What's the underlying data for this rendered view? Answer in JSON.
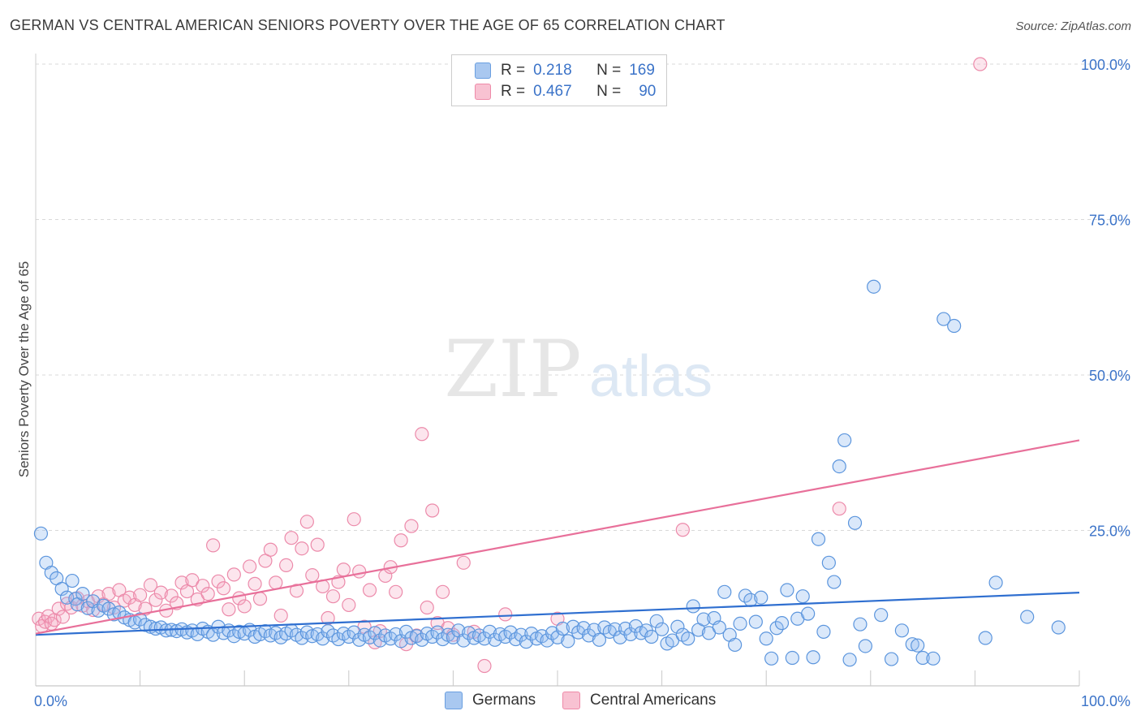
{
  "title": "GERMAN VS CENTRAL AMERICAN SENIORS POVERTY OVER THE AGE OF 65 CORRELATION CHART",
  "source": "Source: ZipAtlas.com",
  "watermark": {
    "zip": "ZIP",
    "atlas": "atlas"
  },
  "legend": {
    "rows": [
      {
        "r_label": "R =",
        "r_value": "0.218",
        "n_label": "N =",
        "n_value": "169",
        "color": "#a9c8f0",
        "border": "#6a9fe0"
      },
      {
        "r_label": "R =",
        "r_value": "0.467",
        "n_label": "N =",
        "n_value": "90",
        "color": "#f8c2d2",
        "border": "#ee8aa8"
      }
    ]
  },
  "bottom_legend": [
    {
      "label": "Germans",
      "color": "#a9c8f0",
      "border": "#6a9fe0"
    },
    {
      "label": "Central Americans",
      "color": "#f8c2d2",
      "border": "#ee8aa8"
    }
  ],
  "colors": {
    "blue_fill": "rgba(150,190,240,0.35)",
    "blue_stroke": "#5b95dd",
    "blue_line": "#2f6fd0",
    "pink_fill": "rgba(245,170,195,0.30)",
    "pink_stroke": "#ec8aaa",
    "pink_line": "#e8709a",
    "tick_text": "#3b73c8",
    "grid": "#d9d9d9"
  },
  "chart_data": {
    "type": "scatter",
    "title": "GERMAN VS CENTRAL AMERICAN SENIORS POVERTY OVER THE AGE OF 65 CORRELATION CHART",
    "xlabel": "",
    "ylabel": "Seniors Poverty Over the Age of 65",
    "xlim": [
      0,
      100
    ],
    "ylim": [
      0,
      100
    ],
    "x_tick_labels": [
      "0.0%",
      "100.0%"
    ],
    "y_tick_labels": [
      "25.0%",
      "50.0%",
      "75.0%",
      "100.0%"
    ],
    "y_tick_values": [
      25,
      50,
      75,
      100
    ],
    "series": [
      {
        "name": "Germans",
        "trend": [
          [
            0,
            8.2
          ],
          [
            100,
            15.0
          ]
        ],
        "points": [
          [
            0.5,
            24.5
          ],
          [
            1,
            19.8
          ],
          [
            1.5,
            18.2
          ],
          [
            2,
            17.3
          ],
          [
            2.5,
            15.6
          ],
          [
            3,
            14.2
          ],
          [
            3.5,
            16.9
          ],
          [
            3.8,
            14.0
          ],
          [
            4,
            13.1
          ],
          [
            4.5,
            14.8
          ],
          [
            5,
            12.5
          ],
          [
            5.5,
            13.6
          ],
          [
            6,
            12.1
          ],
          [
            6.5,
            12.9
          ],
          [
            7,
            12.4
          ],
          [
            7.5,
            11.5
          ],
          [
            8,
            11.8
          ],
          [
            8.5,
            11.0
          ],
          [
            9,
            10.6
          ],
          [
            9.5,
            10.2
          ],
          [
            10,
            10.7
          ],
          [
            10.5,
            9.8
          ],
          [
            11,
            9.5
          ],
          [
            11.5,
            9.2
          ],
          [
            12,
            9.4
          ],
          [
            12.5,
            8.9
          ],
          [
            13,
            9.0
          ],
          [
            13.5,
            8.8
          ],
          [
            14,
            9.1
          ],
          [
            14.5,
            8.6
          ],
          [
            15,
            8.9
          ],
          [
            15.5,
            8.3
          ],
          [
            16,
            9.2
          ],
          [
            16.5,
            8.7
          ],
          [
            17,
            8.2
          ],
          [
            17.5,
            9.5
          ],
          [
            18,
            8.5
          ],
          [
            18.5,
            8.9
          ],
          [
            19,
            8.0
          ],
          [
            19.5,
            8.7
          ],
          [
            20,
            8.4
          ],
          [
            20.5,
            9.0
          ],
          [
            21,
            7.9
          ],
          [
            21.5,
            8.3
          ],
          [
            22,
            8.8
          ],
          [
            22.5,
            8.1
          ],
          [
            23,
            8.5
          ],
          [
            23.5,
            7.8
          ],
          [
            24,
            8.4
          ],
          [
            24.5,
            8.9
          ],
          [
            25,
            8.2
          ],
          [
            25.5,
            7.7
          ],
          [
            26,
            8.6
          ],
          [
            26.5,
            8.0
          ],
          [
            27,
            8.3
          ],
          [
            27.5,
            7.6
          ],
          [
            28,
            8.8
          ],
          [
            28.5,
            8.1
          ],
          [
            29,
            7.5
          ],
          [
            29.5,
            8.4
          ],
          [
            30,
            7.9
          ],
          [
            30.5,
            8.6
          ],
          [
            31,
            7.4
          ],
          [
            31.5,
            8.2
          ],
          [
            32,
            7.8
          ],
          [
            32.5,
            8.5
          ],
          [
            33,
            7.3
          ],
          [
            33.5,
            8.1
          ],
          [
            34,
            7.6
          ],
          [
            34.5,
            8.3
          ],
          [
            35,
            7.2
          ],
          [
            35.5,
            8.7
          ],
          [
            36,
            7.7
          ],
          [
            36.5,
            8.0
          ],
          [
            37,
            7.4
          ],
          [
            37.5,
            8.4
          ],
          [
            38,
            7.9
          ],
          [
            38.5,
            8.6
          ],
          [
            39,
            7.5
          ],
          [
            39.5,
            8.2
          ],
          [
            40,
            7.8
          ],
          [
            40.5,
            8.9
          ],
          [
            41,
            7.3
          ],
          [
            41.5,
            8.5
          ],
          [
            42,
            7.7
          ],
          [
            42.5,
            8.1
          ],
          [
            43,
            7.6
          ],
          [
            43.5,
            8.7
          ],
          [
            44,
            7.4
          ],
          [
            44.5,
            8.3
          ],
          [
            45,
            7.9
          ],
          [
            45.5,
            8.6
          ],
          [
            46,
            7.5
          ],
          [
            46.5,
            8.2
          ],
          [
            47,
            7.1
          ],
          [
            47.5,
            8.4
          ],
          [
            48,
            7.6
          ],
          [
            48.5,
            8.0
          ],
          [
            49,
            7.3
          ],
          [
            49.5,
            8.5
          ],
          [
            50,
            7.8
          ],
          [
            50.5,
            9.2
          ],
          [
            51,
            7.2
          ],
          [
            51.5,
            9.5
          ],
          [
            52,
            8.6
          ],
          [
            52.5,
            9.3
          ],
          [
            53,
            8.1
          ],
          [
            53.5,
            9.0
          ],
          [
            54,
            7.4
          ],
          [
            54.5,
            9.4
          ],
          [
            55,
            8.7
          ],
          [
            55.5,
            9.1
          ],
          [
            56,
            7.8
          ],
          [
            56.5,
            9.2
          ],
          [
            57,
            8.3
          ],
          [
            57.5,
            9.6
          ],
          [
            58,
            8.5
          ],
          [
            58.5,
            8.9
          ],
          [
            59,
            7.9
          ],
          [
            59.5,
            10.4
          ],
          [
            60,
            9.1
          ],
          [
            60.5,
            6.8
          ],
          [
            61,
            7.3
          ],
          [
            61.5,
            9.5
          ],
          [
            62,
            8.2
          ],
          [
            62.5,
            7.6
          ],
          [
            63,
            12.8
          ],
          [
            63.5,
            9.0
          ],
          [
            64,
            10.7
          ],
          [
            64.5,
            8.5
          ],
          [
            65,
            10.9
          ],
          [
            65.5,
            9.4
          ],
          [
            66,
            15.1
          ],
          [
            66.5,
            8.2
          ],
          [
            67,
            6.6
          ],
          [
            67.5,
            10.0
          ],
          [
            68,
            14.5
          ],
          [
            68.5,
            13.8
          ],
          [
            69,
            10.3
          ],
          [
            69.5,
            14.2
          ],
          [
            70,
            7.6
          ],
          [
            70.5,
            4.4
          ],
          [
            71,
            9.3
          ],
          [
            71.5,
            10.1
          ],
          [
            72,
            15.4
          ],
          [
            72.5,
            4.5
          ],
          [
            73,
            10.8
          ],
          [
            73.5,
            14.4
          ],
          [
            74,
            11.6
          ],
          [
            74.5,
            4.6
          ],
          [
            75,
            23.6
          ],
          [
            75.5,
            8.7
          ],
          [
            76,
            19.8
          ],
          [
            76.5,
            16.7
          ],
          [
            77,
            35.3
          ],
          [
            77.5,
            39.5
          ],
          [
            78,
            4.2
          ],
          [
            78.5,
            26.2
          ],
          [
            79,
            9.9
          ],
          [
            79.5,
            6.4
          ],
          [
            80.3,
            64.2
          ],
          [
            81,
            11.4
          ],
          [
            82,
            4.3
          ],
          [
            83,
            8.9
          ],
          [
            84,
            6.7
          ],
          [
            84.5,
            6.5
          ],
          [
            85,
            4.5
          ],
          [
            86,
            4.4
          ],
          [
            87,
            59.0
          ],
          [
            88,
            57.9
          ],
          [
            91,
            7.7
          ],
          [
            92,
            16.6
          ],
          [
            95,
            11.1
          ],
          [
            98,
            9.4
          ]
        ]
      },
      {
        "name": "Central Americans",
        "trend": [
          [
            0,
            8.4
          ],
          [
            100,
            39.5
          ]
        ],
        "points": [
          [
            0.3,
            10.8
          ],
          [
            0.6,
            9.6
          ],
          [
            0.9,
            10.3
          ],
          [
            1.2,
            11.2
          ],
          [
            1.5,
            10.0
          ],
          [
            1.8,
            10.6
          ],
          [
            2.2,
            12.4
          ],
          [
            2.6,
            11.1
          ],
          [
            3,
            13.2
          ],
          [
            3.4,
            12.6
          ],
          [
            4,
            14.1
          ],
          [
            4.5,
            12.9
          ],
          [
            5,
            13.6
          ],
          [
            5.5,
            12.2
          ],
          [
            6,
            14.4
          ],
          [
            6.5,
            13.1
          ],
          [
            7,
            14.8
          ],
          [
            7.5,
            12.6
          ],
          [
            8,
            15.4
          ],
          [
            8.5,
            13.7
          ],
          [
            9,
            14.2
          ],
          [
            9.5,
            13.0
          ],
          [
            10,
            14.6
          ],
          [
            10.5,
            12.4
          ],
          [
            11,
            16.2
          ],
          [
            11.5,
            13.8
          ],
          [
            12,
            15.0
          ],
          [
            12.5,
            12.1
          ],
          [
            13,
            14.5
          ],
          [
            13.5,
            13.3
          ],
          [
            14,
            16.6
          ],
          [
            14.5,
            15.2
          ],
          [
            15,
            17.0
          ],
          [
            15.5,
            13.9
          ],
          [
            16,
            16.1
          ],
          [
            16.5,
            14.8
          ],
          [
            17,
            22.6
          ],
          [
            17.5,
            16.8
          ],
          [
            18,
            15.7
          ],
          [
            18.5,
            12.3
          ],
          [
            19,
            17.9
          ],
          [
            19.5,
            14.1
          ],
          [
            20,
            12.8
          ],
          [
            20.5,
            19.2
          ],
          [
            21,
            16.4
          ],
          [
            21.5,
            14.0
          ],
          [
            22,
            20.1
          ],
          [
            22.5,
            21.9
          ],
          [
            23,
            16.6
          ],
          [
            23.5,
            11.3
          ],
          [
            24,
            19.4
          ],
          [
            24.5,
            23.8
          ],
          [
            25,
            15.3
          ],
          [
            25.5,
            22.1
          ],
          [
            26,
            26.4
          ],
          [
            26.5,
            17.8
          ],
          [
            27,
            22.7
          ],
          [
            27.5,
            16.0
          ],
          [
            28,
            10.9
          ],
          [
            28.5,
            14.4
          ],
          [
            29,
            16.7
          ],
          [
            29.5,
            18.7
          ],
          [
            30,
            13.0
          ],
          [
            30.5,
            26.8
          ],
          [
            31,
            18.4
          ],
          [
            31.5,
            9.5
          ],
          [
            32,
            15.4
          ],
          [
            32.5,
            7.0
          ],
          [
            33,
            8.8
          ],
          [
            33.5,
            17.7
          ],
          [
            34,
            19.1
          ],
          [
            34.5,
            15.1
          ],
          [
            35,
            23.4
          ],
          [
            35.5,
            6.7
          ],
          [
            36,
            25.7
          ],
          [
            36.5,
            8.1
          ],
          [
            37,
            40.5
          ],
          [
            37.5,
            12.6
          ],
          [
            38,
            28.2
          ],
          [
            38.5,
            10.1
          ],
          [
            39,
            15.1
          ],
          [
            39.5,
            9.3
          ],
          [
            40,
            8.2
          ],
          [
            41,
            19.8
          ],
          [
            42,
            8.7
          ],
          [
            43,
            3.2
          ],
          [
            45,
            11.5
          ],
          [
            50,
            10.8
          ],
          [
            62,
            25.1
          ],
          [
            77,
            28.5
          ],
          [
            90.5,
            100.0
          ]
        ]
      }
    ]
  }
}
